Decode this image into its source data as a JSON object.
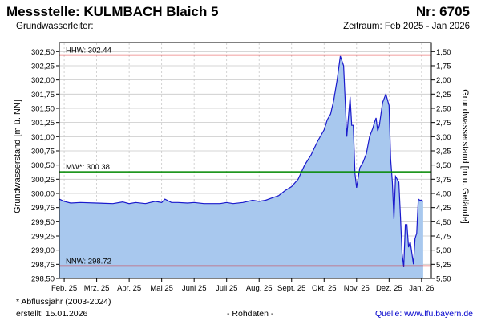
{
  "header": {
    "title": "Messstelle: KULMBACH Blaich 5",
    "number": "Nr: 6705",
    "subtitle_left": "Grundwasserleiter:",
    "subtitle_right": "Zeitraum: Feb 2025 - Jan 2026"
  },
  "footer": {
    "note": "* Abflussjahr (2003-2024)",
    "created": "erstellt:  15.01.2026",
    "raw": "- Rohdaten -",
    "source": "Quelle: www.lfu.bayern.de"
  },
  "colors": {
    "fill": "#a8c8ee",
    "line": "#1a1acc",
    "hhw": "#dd0000",
    "nnw": "#dd0000",
    "mw": "#008800",
    "grid": "#c8c8c8"
  },
  "chart_data": {
    "type": "area",
    "ylabel": "Grundwasserstand [m ü. NN]",
    "ylabel_right": "Grundwasserstand [m u. Gelände]",
    "ylim": [
      298.5,
      302.6
    ],
    "y_ticks": [
      "302,50",
      "302,25",
      "302,00",
      "301,75",
      "301,50",
      "301,25",
      "301,00",
      "300,75",
      "300,50",
      "300,25",
      "300,00",
      "299,75",
      "299,50",
      "299,25",
      "299,00",
      "298,75",
      "298,50"
    ],
    "y_tick_values": [
      302.5,
      302.25,
      302.0,
      301.75,
      301.5,
      301.25,
      301.0,
      300.75,
      300.5,
      300.25,
      300.0,
      299.75,
      299.5,
      299.25,
      299.0,
      298.75,
      298.5
    ],
    "y2_ticks": [
      "1,50",
      "1,75",
      "2,00",
      "2,25",
      "2,50",
      "2,75",
      "3,00",
      "3,25",
      "3,50",
      "3,75",
      "4,00",
      "4,25",
      "4,50",
      "4,75",
      "5,00",
      "5,25",
      "5,50"
    ],
    "y2_tick_values": [
      1.5,
      1.75,
      2.0,
      2.25,
      2.5,
      2.75,
      3.0,
      3.25,
      3.5,
      3.75,
      4.0,
      4.25,
      4.5,
      4.75,
      5.0,
      5.25,
      5.5
    ],
    "x_ticks": [
      "Feb. 25",
      "Mrz. 25",
      "Apr. 25",
      "Mai 25",
      "Juni 25",
      "Juli 25",
      "Aug. 25",
      "Sept. 25",
      "Okt. 25",
      "Nov. 25",
      "Dez. 25",
      "Jan. 26"
    ],
    "x_tick_months": [
      1,
      2,
      3,
      4,
      5,
      6,
      7,
      8,
      9,
      10,
      11,
      12
    ],
    "x_range_months": [
      0.85,
      12.3
    ],
    "reference_lines": [
      {
        "label": "HHW: 302.44",
        "value": 302.44,
        "key": "hhw"
      },
      {
        "label": "MW*: 300.38",
        "value": 300.38,
        "key": "mw"
      },
      {
        "label": "NNW: 298.72",
        "value": 298.72,
        "key": "nnw"
      }
    ],
    "series": [
      {
        "x": [
          0.85,
          1.0,
          1.2,
          1.5,
          2.0,
          2.5,
          2.8,
          3.0,
          3.2,
          3.5,
          3.8,
          4.0,
          4.1,
          4.3,
          4.5,
          4.8,
          5.0,
          5.3,
          5.5,
          5.8,
          6.0,
          6.2,
          6.5,
          6.8,
          7.0,
          7.2,
          7.4,
          7.5,
          7.6,
          7.8,
          8.0,
          8.2,
          8.4,
          8.6,
          8.8,
          9.0,
          9.1,
          9.2,
          9.3,
          9.4,
          9.5,
          9.6,
          9.7,
          9.8,
          9.85,
          9.9,
          9.95,
          10.0,
          10.1,
          10.2,
          10.3,
          10.4,
          10.5,
          10.55,
          10.6,
          10.65,
          10.7,
          10.8,
          10.9,
          11.0,
          11.05,
          11.1,
          11.15,
          11.2,
          11.25,
          11.3,
          11.35,
          11.4,
          11.45,
          11.5,
          11.55,
          11.6,
          11.65,
          11.7,
          11.75,
          11.8,
          11.85,
          11.9,
          11.95,
          12.0,
          12.05
        ],
        "y": [
          299.9,
          299.86,
          299.83,
          299.84,
          299.83,
          299.82,
          299.85,
          299.82,
          299.84,
          299.82,
          299.86,
          299.84,
          299.9,
          299.84,
          299.84,
          299.83,
          299.84,
          299.82,
          299.82,
          299.82,
          299.84,
          299.82,
          299.84,
          299.88,
          299.86,
          299.88,
          299.92,
          299.94,
          299.96,
          300.05,
          300.12,
          300.25,
          300.5,
          300.68,
          300.92,
          301.12,
          301.3,
          301.4,
          301.65,
          302.0,
          302.42,
          302.25,
          301.0,
          301.7,
          301.2,
          301.2,
          300.35,
          300.1,
          300.45,
          300.55,
          300.7,
          301.0,
          301.15,
          301.25,
          301.33,
          301.1,
          301.2,
          301.6,
          301.75,
          301.55,
          300.6,
          300.2,
          299.55,
          300.3,
          300.25,
          300.2,
          299.6,
          298.95,
          298.7,
          299.45,
          299.45,
          299.05,
          299.15,
          298.95,
          298.75,
          299.2,
          299.3,
          299.9,
          299.88,
          299.88,
          299.86
        ]
      }
    ]
  }
}
